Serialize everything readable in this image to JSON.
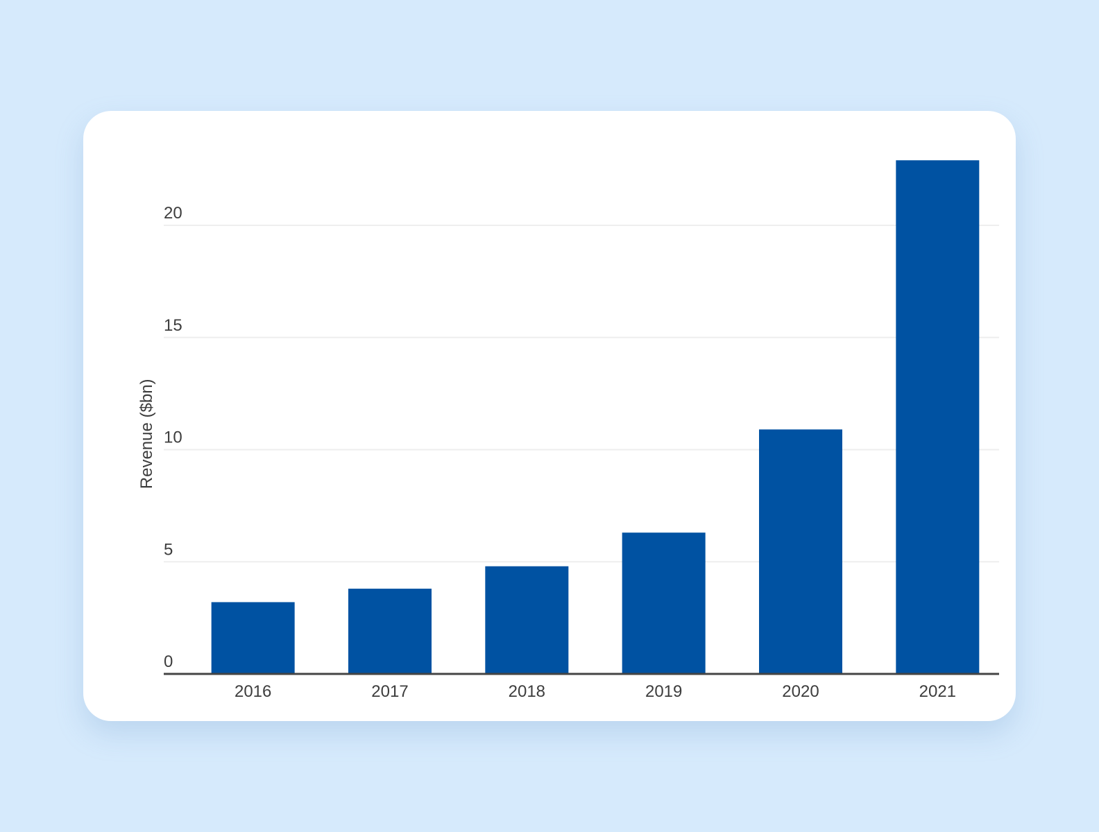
{
  "chart_data": {
    "type": "bar",
    "categories": [
      "2016",
      "2017",
      "2018",
      "2019",
      "2020",
      "2021"
    ],
    "values": [
      3.2,
      3.8,
      4.8,
      6.3,
      10.9,
      22.9
    ],
    "title": "",
    "xlabel": "",
    "ylabel": "Revenue ($bn)",
    "ylim": [
      0,
      23
    ],
    "yticks": [
      0,
      5,
      10,
      15,
      20
    ],
    "grid": true,
    "bar_color": "#0052a2",
    "grid_color": "#eeeeee",
    "axis_color": "#444444"
  }
}
